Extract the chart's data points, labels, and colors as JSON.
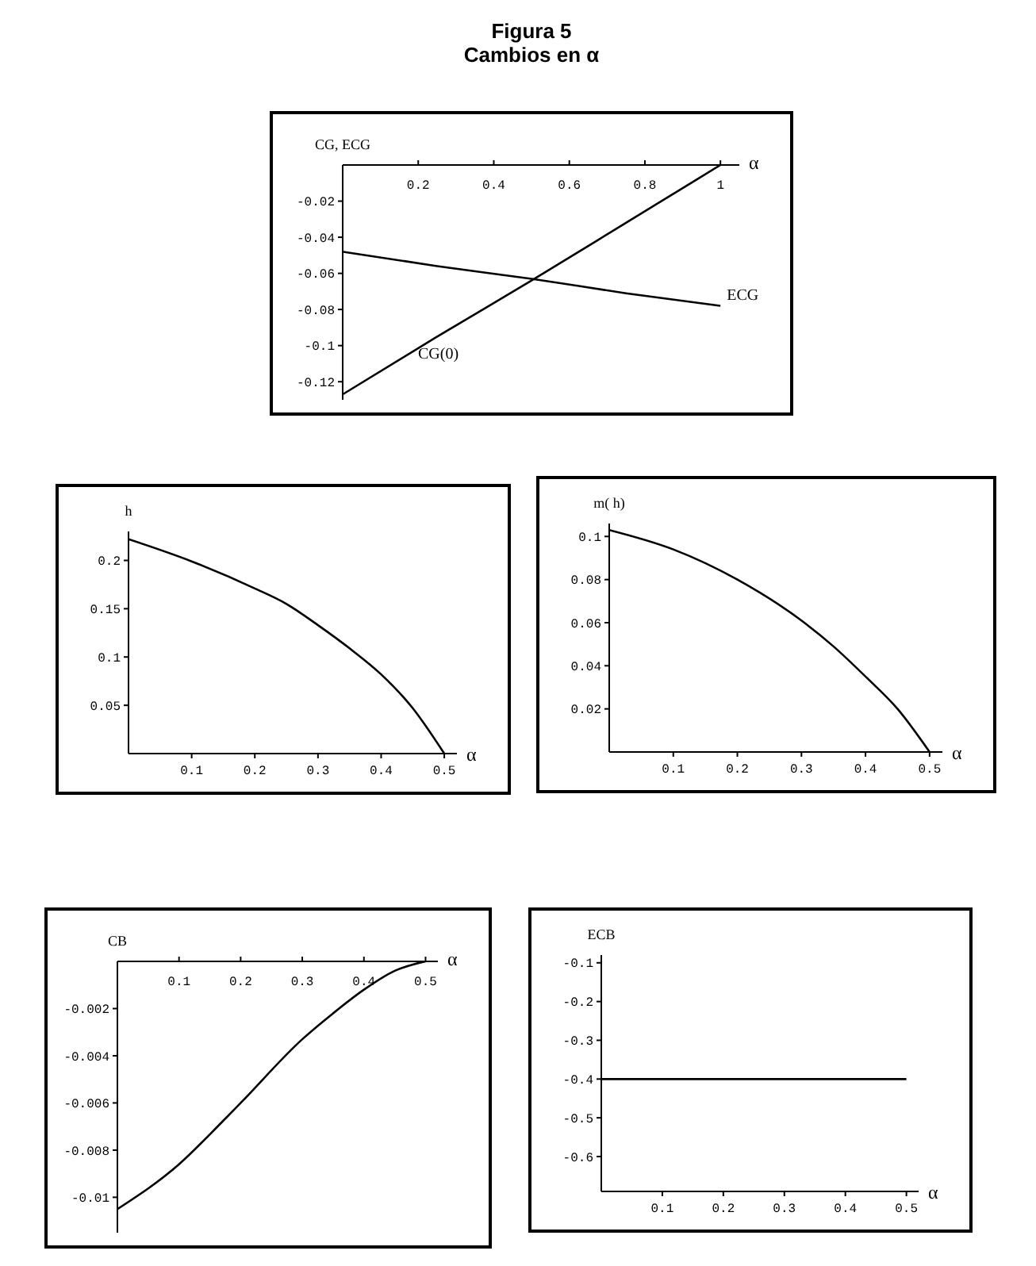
{
  "chart_data": [
    {
      "type": "line",
      "title": "Figura 5",
      "subtitle": "Cambios en α",
      "xlabel": "α",
      "ylabel": "CG, ECG",
      "x": [
        0,
        0.25,
        0.5,
        0.75,
        1
      ],
      "series": [
        {
          "name": "CG(0)",
          "color": "#000000",
          "values": [
            -0.127,
            -0.095,
            -0.064,
            -0.032,
            0
          ]
        },
        {
          "name": "ECG",
          "color": "#000000",
          "values": [
            -0.048,
            -0.056,
            -0.063,
            -0.071,
            -0.078
          ]
        }
      ],
      "xlim": [
        0,
        1.05
      ],
      "ylim": [
        -0.13,
        0
      ],
      "xticks": [
        0.2,
        0.4,
        0.6,
        0.8,
        1
      ],
      "yticks": [
        -0.02,
        -0.04,
        -0.06,
        -0.08,
        -0.1,
        -0.12
      ]
    },
    {
      "type": "line",
      "xlabel": "α",
      "ylabel": "h",
      "x": [
        0,
        0.1,
        0.2,
        0.25,
        0.3,
        0.35,
        0.4,
        0.45,
        0.5
      ],
      "values": [
        0.222,
        0.199,
        0.171,
        0.155,
        0.133,
        0.109,
        0.082,
        0.047,
        0
      ],
      "color": "#000000",
      "xlim": [
        0,
        0.52
      ],
      "ylim": [
        0,
        0.23
      ],
      "xticks": [
        0.1,
        0.2,
        0.3,
        0.4,
        0.5
      ],
      "yticks": [
        0.05,
        0.1,
        0.15,
        0.2
      ]
    },
    {
      "type": "line",
      "xlabel": "α",
      "ylabel": "m( h)",
      "x": [
        0,
        0.1,
        0.2,
        0.3,
        0.35,
        0.4,
        0.45,
        0.5
      ],
      "values": [
        0.103,
        0.094,
        0.08,
        0.061,
        0.049,
        0.035,
        0.02,
        0
      ],
      "color": "#000000",
      "xlim": [
        0,
        0.52
      ],
      "ylim": [
        0,
        0.106
      ],
      "xticks": [
        0.1,
        0.2,
        0.3,
        0.4,
        0.5
      ],
      "yticks": [
        0.02,
        0.04,
        0.06,
        0.08,
        0.1
      ]
    },
    {
      "type": "line",
      "xlabel": "α",
      "ylabel": "CB",
      "x": [
        0,
        0.1,
        0.17,
        0.2,
        0.3,
        0.35,
        0.4,
        0.45,
        0.5
      ],
      "values": [
        -0.0105,
        -0.0086,
        -0.0068,
        -0.006,
        -0.0033,
        -0.0022,
        -0.0012,
        -0.0004,
        0
      ],
      "color": "#000000",
      "xlim": [
        0,
        0.52
      ],
      "ylim": [
        -0.0115,
        0
      ],
      "xticks": [
        0.1,
        0.2,
        0.3,
        0.4,
        0.5
      ],
      "yticks": [
        -0.002,
        -0.004,
        -0.006,
        -0.008,
        -0.01
      ]
    },
    {
      "type": "line",
      "xlabel": "α",
      "ylabel": "ECB",
      "x": [
        0,
        0.5
      ],
      "values": [
        -0.4,
        -0.4
      ],
      "color": "#000000",
      "xlim": [
        0,
        0.52
      ],
      "ylim": [
        -0.69,
        -0.08
      ],
      "xticks": [
        0.1,
        0.2,
        0.3,
        0.4,
        0.5
      ],
      "yticks": [
        -0.1,
        -0.2,
        -0.3,
        -0.4,
        -0.5,
        -0.6
      ]
    }
  ]
}
